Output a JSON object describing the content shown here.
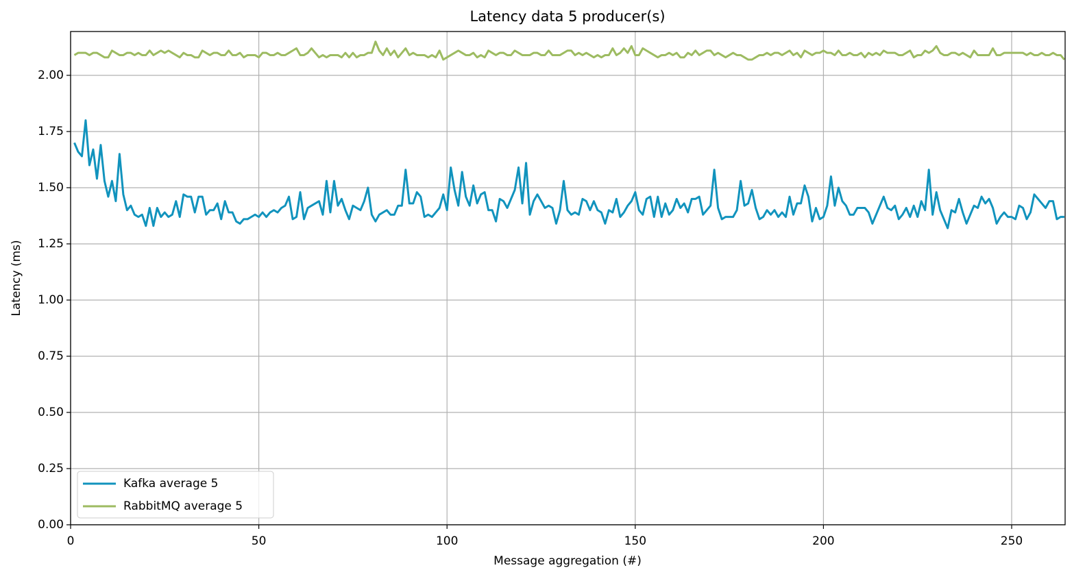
{
  "chart_data": {
    "type": "line",
    "title": "Latency data 5 producer(s)",
    "x_label": "Message aggregation (#)",
    "y_label": "Latency (ms)",
    "xlim": [
      0,
      264.2
    ],
    "ylim": [
      0,
      2.195
    ],
    "xticks": [
      0,
      50,
      100,
      150,
      200,
      250
    ],
    "yticks": [
      {
        "value": 0,
        "label": "0.00"
      },
      {
        "value": 0.25,
        "label": "0.25"
      },
      {
        "value": 0.5,
        "label": "0.50"
      },
      {
        "value": 0.75,
        "label": "0.75"
      },
      {
        "value": 1,
        "label": "1.00"
      },
      {
        "value": 1.25,
        "label": "1.25"
      },
      {
        "value": 1.5,
        "label": "1.50"
      },
      {
        "value": 1.75,
        "label": "1.75"
      },
      {
        "value": 2,
        "label": "2.00"
      }
    ],
    "grid": true,
    "legend": "lower left",
    "x": [
      1,
      2,
      3,
      4,
      5,
      6,
      7,
      8,
      9,
      10,
      11,
      12,
      13,
      14,
      15,
      16,
      17,
      18,
      19,
      20,
      21,
      22,
      23,
      24,
      25,
      26,
      27,
      28,
      29,
      30,
      31,
      32,
      33,
      34,
      35,
      36,
      37,
      38,
      39,
      40,
      41,
      42,
      43,
      44,
      45,
      46,
      47,
      48,
      49,
      50,
      51,
      52,
      53,
      54,
      55,
      56,
      57,
      58,
      59,
      60,
      61,
      62,
      63,
      64,
      65,
      66,
      67,
      68,
      69,
      70,
      71,
      72,
      73,
      74,
      75,
      76,
      77,
      78,
      79,
      80,
      81,
      82,
      83,
      84,
      85,
      86,
      87,
      88,
      89,
      90,
      91,
      92,
      93,
      94,
      95,
      96,
      97,
      98,
      99,
      100,
      101,
      102,
      103,
      104,
      105,
      106,
      107,
      108,
      109,
      110,
      111,
      112,
      113,
      114,
      115,
      116,
      117,
      118,
      119,
      120,
      121,
      122,
      123,
      124,
      125,
      126,
      127,
      128,
      129,
      130,
      131,
      132,
      133,
      134,
      135,
      136,
      137,
      138,
      139,
      140,
      141,
      142,
      143,
      144,
      145,
      146,
      147,
      148,
      149,
      150,
      151,
      152,
      153,
      154,
      155,
      156,
      157,
      158,
      159,
      160,
      161,
      162,
      163,
      164,
      165,
      166,
      167,
      168,
      169,
      170,
      171,
      172,
      173,
      174,
      175,
      176,
      177,
      178,
      179,
      180,
      181,
      182,
      183,
      184,
      185,
      186,
      187,
      188,
      189,
      190,
      191,
      192,
      193,
      194,
      195,
      196,
      197,
      198,
      199,
      200,
      201,
      202,
      203,
      204,
      205,
      206,
      207,
      208,
      209,
      210,
      211,
      212,
      213,
      214,
      215,
      216,
      217,
      218,
      219,
      220,
      221,
      222,
      223,
      224,
      225,
      226,
      227,
      228,
      229,
      230,
      231,
      232,
      233,
      234,
      235,
      236,
      237,
      238,
      239,
      240,
      241,
      242,
      243,
      244,
      245,
      246,
      247,
      248,
      249,
      250,
      251,
      252,
      253,
      254,
      255,
      256,
      257,
      258,
      259,
      260,
      261,
      262,
      263,
      264
    ],
    "series": [
      {
        "name": "Kafka average 5",
        "color": "#1193bd",
        "values": [
          1.7,
          1.66,
          1.64,
          1.8,
          1.6,
          1.67,
          1.54,
          1.69,
          1.53,
          1.46,
          1.53,
          1.44,
          1.65,
          1.47,
          1.4,
          1.42,
          1.38,
          1.37,
          1.38,
          1.33,
          1.41,
          1.33,
          1.41,
          1.37,
          1.39,
          1.37,
          1.38,
          1.44,
          1.37,
          1.47,
          1.46,
          1.46,
          1.39,
          1.46,
          1.46,
          1.38,
          1.4,
          1.4,
          1.43,
          1.36,
          1.44,
          1.39,
          1.39,
          1.35,
          1.34,
          1.36,
          1.36,
          1.37,
          1.38,
          1.37,
          1.39,
          1.37,
          1.39,
          1.4,
          1.39,
          1.41,
          1.42,
          1.46,
          1.36,
          1.37,
          1.48,
          1.36,
          1.41,
          1.42,
          1.43,
          1.44,
          1.38,
          1.53,
          1.39,
          1.53,
          1.42,
          1.45,
          1.4,
          1.36,
          1.42,
          1.41,
          1.4,
          1.44,
          1.5,
          1.38,
          1.35,
          1.38,
          1.39,
          1.4,
          1.38,
          1.38,
          1.42,
          1.42,
          1.58,
          1.43,
          1.43,
          1.48,
          1.46,
          1.37,
          1.38,
          1.37,
          1.39,
          1.41,
          1.47,
          1.4,
          1.59,
          1.49,
          1.42,
          1.57,
          1.46,
          1.42,
          1.51,
          1.43,
          1.47,
          1.48,
          1.4,
          1.4,
          1.35,
          1.45,
          1.44,
          1.41,
          1.45,
          1.49,
          1.59,
          1.43,
          1.61,
          1.38,
          1.44,
          1.47,
          1.44,
          1.41,
          1.42,
          1.41,
          1.34,
          1.4,
          1.53,
          1.4,
          1.38,
          1.39,
          1.38,
          1.45,
          1.44,
          1.4,
          1.44,
          1.4,
          1.39,
          1.34,
          1.4,
          1.39,
          1.45,
          1.37,
          1.39,
          1.42,
          1.44,
          1.48,
          1.4,
          1.38,
          1.45,
          1.46,
          1.37,
          1.46,
          1.37,
          1.43,
          1.38,
          1.4,
          1.45,
          1.41,
          1.43,
          1.39,
          1.45,
          1.45,
          1.46,
          1.38,
          1.4,
          1.42,
          1.58,
          1.41,
          1.36,
          1.37,
          1.37,
          1.37,
          1.4,
          1.53,
          1.42,
          1.43,
          1.49,
          1.41,
          1.36,
          1.37,
          1.4,
          1.38,
          1.4,
          1.37,
          1.39,
          1.37,
          1.46,
          1.38,
          1.43,
          1.43,
          1.51,
          1.46,
          1.35,
          1.41,
          1.36,
          1.37,
          1.42,
          1.55,
          1.42,
          1.5,
          1.44,
          1.42,
          1.38,
          1.38,
          1.41,
          1.41,
          1.41,
          1.39,
          1.34,
          1.38,
          1.42,
          1.46,
          1.41,
          1.4,
          1.42,
          1.36,
          1.38,
          1.41,
          1.37,
          1.42,
          1.37,
          1.44,
          1.4,
          1.58,
          1.38,
          1.48,
          1.4,
          1.36,
          1.32,
          1.4,
          1.39,
          1.45,
          1.39,
          1.34,
          1.38,
          1.42,
          1.41,
          1.46,
          1.43,
          1.45,
          1.41,
          1.34,
          1.37,
          1.39,
          1.37,
          1.37,
          1.36,
          1.42,
          1.41,
          1.36,
          1.39,
          1.47,
          1.45,
          1.43,
          1.41,
          1.44,
          1.44,
          1.36,
          1.37,
          1.37
        ]
      },
      {
        "name": "RabbitMQ average 5",
        "color": "#9dbb61",
        "values": [
          2.09,
          2.1,
          2.1,
          2.1,
          2.09,
          2.1,
          2.1,
          2.09,
          2.08,
          2.08,
          2.11,
          2.1,
          2.09,
          2.09,
          2.1,
          2.1,
          2.09,
          2.1,
          2.09,
          2.09,
          2.11,
          2.09,
          2.1,
          2.11,
          2.1,
          2.11,
          2.1,
          2.09,
          2.08,
          2.1,
          2.09,
          2.09,
          2.08,
          2.08,
          2.11,
          2.1,
          2.09,
          2.1,
          2.1,
          2.09,
          2.09,
          2.11,
          2.09,
          2.09,
          2.1,
          2.08,
          2.09,
          2.09,
          2.09,
          2.08,
          2.1,
          2.1,
          2.09,
          2.09,
          2.1,
          2.09,
          2.09,
          2.1,
          2.11,
          2.12,
          2.09,
          2.09,
          2.1,
          2.12,
          2.1,
          2.08,
          2.09,
          2.08,
          2.09,
          2.09,
          2.09,
          2.08,
          2.1,
          2.08,
          2.1,
          2.08,
          2.09,
          2.09,
          2.1,
          2.1,
          2.15,
          2.11,
          2.09,
          2.12,
          2.09,
          2.11,
          2.08,
          2.1,
          2.12,
          2.09,
          2.1,
          2.09,
          2.09,
          2.09,
          2.08,
          2.09,
          2.08,
          2.11,
          2.07,
          2.08,
          2.09,
          2.1,
          2.11,
          2.1,
          2.09,
          2.09,
          2.1,
          2.08,
          2.09,
          2.08,
          2.11,
          2.1,
          2.09,
          2.1,
          2.1,
          2.09,
          2.09,
          2.11,
          2.1,
          2.09,
          2.09,
          2.09,
          2.1,
          2.1,
          2.09,
          2.09,
          2.11,
          2.09,
          2.09,
          2.09,
          2.1,
          2.11,
          2.11,
          2.09,
          2.1,
          2.09,
          2.1,
          2.09,
          2.08,
          2.09,
          2.08,
          2.09,
          2.09,
          2.12,
          2.09,
          2.1,
          2.12,
          2.1,
          2.13,
          2.09,
          2.09,
          2.12,
          2.11,
          2.1,
          2.09,
          2.08,
          2.09,
          2.09,
          2.1,
          2.09,
          2.1,
          2.08,
          2.08,
          2.1,
          2.09,
          2.11,
          2.09,
          2.1,
          2.11,
          2.11,
          2.09,
          2.1,
          2.09,
          2.08,
          2.09,
          2.1,
          2.09,
          2.09,
          2.08,
          2.07,
          2.07,
          2.08,
          2.09,
          2.09,
          2.1,
          2.09,
          2.1,
          2.1,
          2.09,
          2.1,
          2.11,
          2.09,
          2.1,
          2.08,
          2.11,
          2.1,
          2.09,
          2.1,
          2.1,
          2.11,
          2.1,
          2.1,
          2.09,
          2.11,
          2.09,
          2.09,
          2.1,
          2.09,
          2.09,
          2.1,
          2.08,
          2.1,
          2.09,
          2.1,
          2.09,
          2.11,
          2.1,
          2.1,
          2.1,
          2.09,
          2.09,
          2.1,
          2.11,
          2.08,
          2.09,
          2.09,
          2.11,
          2.1,
          2.11,
          2.13,
          2.1,
          2.09,
          2.09,
          2.1,
          2.1,
          2.09,
          2.1,
          2.09,
          2.08,
          2.11,
          2.09,
          2.09,
          2.09,
          2.09,
          2.12,
          2.09,
          2.09,
          2.1,
          2.1,
          2.1,
          2.1,
          2.1,
          2.1,
          2.09,
          2.1,
          2.09,
          2.09,
          2.1,
          2.09,
          2.09,
          2.1,
          2.09,
          2.09,
          2.07
        ]
      }
    ]
  }
}
